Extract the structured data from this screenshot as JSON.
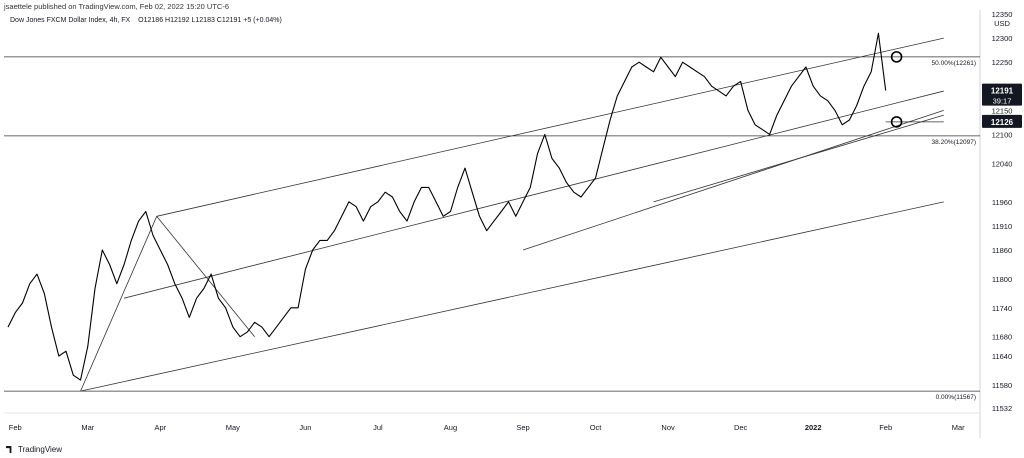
{
  "header": {
    "publisher": "jsaettele published on TradingView.com, Feb 02, 2022 15:20 UTC-6"
  },
  "symbol": {
    "name": "Dow Jones FXCM Dollar Index, 4h, FX",
    "ohlc": "O12186  H12192  L12183  C12191  +5 (+0.04%)"
  },
  "footer": {
    "brand": "TradingView"
  },
  "colors": {
    "price": "#000000",
    "line": "#333333",
    "badge": "#131722",
    "circle": "#000000"
  },
  "chart_data": {
    "type": "line",
    "currency": "USD",
    "ylim": [
      11532,
      12350
    ],
    "y_ticks": [
      11532,
      11580,
      11640,
      11680,
      11740,
      11800,
      11860,
      11910,
      11960,
      12040,
      12100,
      12150,
      12250,
      12300,
      12350
    ],
    "x_ticks": [
      "Feb",
      "Mar",
      "Apr",
      "May",
      "Jun",
      "Jul",
      "Aug",
      "Sep",
      "Oct",
      "Nov",
      "Dec",
      "2022",
      "Feb",
      "Mar"
    ],
    "x_tick_index": [
      0,
      1,
      2,
      3,
      4,
      5,
      6,
      7,
      8,
      9,
      10,
      11,
      12,
      13
    ],
    "series": [
      {
        "x": [
          0.0,
          0.1,
          0.2,
          0.3,
          0.4,
          0.5,
          0.6,
          0.7,
          0.8,
          0.9,
          1.0,
          1.1,
          1.2,
          1.3,
          1.4,
          1.5,
          1.6,
          1.7,
          1.8,
          1.9,
          2.0,
          2.1,
          2.2,
          2.3,
          2.4,
          2.5,
          2.6,
          2.7,
          2.8,
          2.9,
          3.0,
          3.1,
          3.2,
          3.3,
          3.4,
          3.5,
          3.6,
          3.7,
          3.8,
          3.9,
          4.0,
          4.1,
          4.2,
          4.3,
          4.4,
          4.5,
          4.6,
          4.7,
          4.8,
          4.9,
          5.0,
          5.1,
          5.2,
          5.3,
          5.4,
          5.5,
          5.6,
          5.7,
          5.8,
          5.9,
          6.0,
          6.1,
          6.2,
          6.3,
          6.4,
          6.5,
          6.6,
          6.7,
          6.8,
          6.9,
          7.0,
          7.1,
          7.2,
          7.3,
          7.4,
          7.5,
          7.6,
          7.7,
          7.8,
          7.9,
          8.0,
          8.1,
          8.2,
          8.3,
          8.4,
          8.5,
          8.6,
          8.7,
          8.8,
          8.9,
          9.0,
          9.1,
          9.2,
          9.3,
          9.4,
          9.5,
          9.6,
          9.7,
          9.8,
          9.9,
          10.0,
          10.1,
          10.2,
          10.3,
          10.4,
          10.5,
          10.6,
          10.7,
          10.8,
          10.9,
          11.0,
          11.1,
          11.2,
          11.3,
          11.4,
          11.5,
          11.6,
          11.7,
          11.8,
          11.9,
          12.0,
          12.1
        ],
        "y": [
          11700,
          11730,
          11750,
          11790,
          11810,
          11770,
          11700,
          11640,
          11650,
          11600,
          11590,
          11660,
          11780,
          11860,
          11830,
          11790,
          11830,
          11880,
          11920,
          11940,
          11890,
          11860,
          11830,
          11790,
          11760,
          11720,
          11760,
          11780,
          11810,
          11760,
          11740,
          11700,
          11680,
          11690,
          11710,
          11700,
          11680,
          11700,
          11720,
          11740,
          11740,
          11820,
          11860,
          11880,
          11880,
          11900,
          11930,
          11960,
          11950,
          11920,
          11950,
          11960,
          11980,
          11970,
          11940,
          11920,
          11960,
          11990,
          11990,
          11960,
          11930,
          11940,
          11990,
          12030,
          11980,
          11930,
          11900,
          11920,
          11940,
          11960,
          11930,
          11960,
          11990,
          12060,
          12100,
          12050,
          12030,
          12000,
          11980,
          11970,
          11990,
          12010,
          12070,
          12130,
          12180,
          12210,
          12240,
          12250,
          12240,
          12230,
          12260,
          12240,
          12220,
          12250,
          12240,
          12230,
          12220,
          12200,
          12190,
          12180,
          12200,
          12210,
          12150,
          12120,
          12110,
          12100,
          12140,
          12170,
          12200,
          12220,
          12240,
          12200,
          12180,
          12170,
          12150,
          12120,
          12130,
          12160,
          12200,
          12230,
          12310,
          12191
        ]
      }
    ],
    "levels": [
      {
        "label": "50.00%(12261)",
        "value": 12261
      },
      {
        "label": "38.20%(12097)",
        "value": 12097
      },
      {
        "label": "0.00%(11567)",
        "value": 11567
      }
    ],
    "trendlines": [
      {
        "x": [
          1.0,
          12.9
        ],
        "y": [
          11567,
          11960
        ]
      },
      {
        "x": [
          1.0,
          2.05
        ],
        "y": [
          11567,
          11930
        ]
      },
      {
        "x": [
          2.05,
          12.9
        ],
        "y": [
          11930,
          12300
        ]
      },
      {
        "x": [
          1.6,
          12.9
        ],
        "y": [
          11760,
          12190
        ]
      },
      {
        "x": [
          2.05,
          3.4
        ],
        "y": [
          11930,
          11680
        ]
      },
      {
        "x": [
          7.1,
          12.9
        ],
        "y": [
          11860,
          12150
        ]
      },
      {
        "x": [
          8.9,
          12.9
        ],
        "y": [
          11960,
          12140
        ]
      }
    ],
    "markers": [
      {
        "x": 12.25,
        "y": 12261
      },
      {
        "x": 12.25,
        "y": 12126
      }
    ],
    "support_line": {
      "x": [
        12.1,
        12.9
      ],
      "y": [
        12126,
        12126
      ]
    },
    "price_labels": [
      {
        "value": 12191,
        "label": "12191",
        "countdown": "39:17"
      },
      {
        "value": 12126,
        "label": "12126"
      }
    ]
  }
}
